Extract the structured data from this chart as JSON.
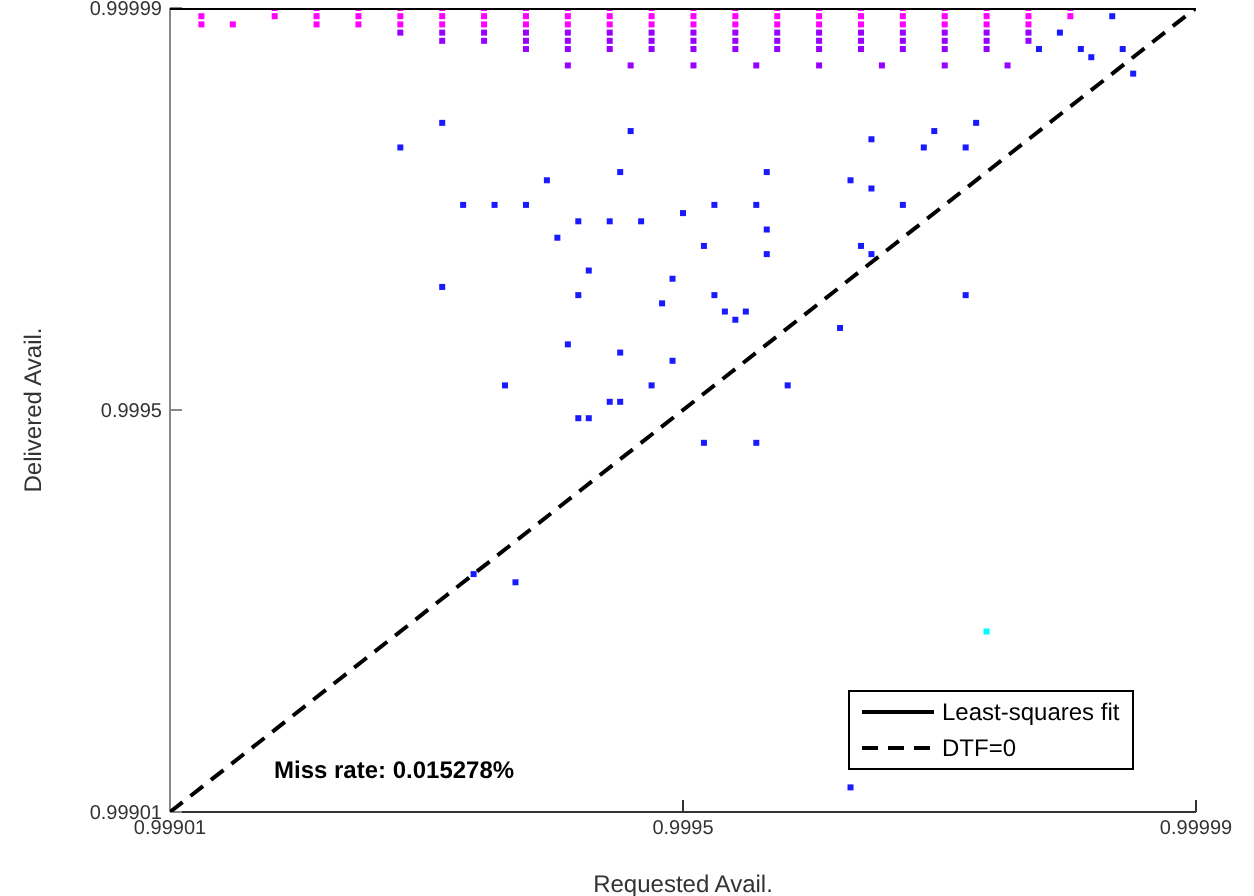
{
  "chart_data": {
    "type": "scatter",
    "xlabel": "Requested Avail.",
    "ylabel": "Delivered Avail.",
    "xlim": [
      0.99901,
      0.99999
    ],
    "ylim": [
      0.99901,
      0.99999
    ],
    "xticks": [
      0.99901,
      0.9995,
      0.99999
    ],
    "yticks": [
      0.99901,
      0.9995,
      0.99999
    ],
    "grid": false,
    "marker": "square",
    "legend": "bottom right",
    "annotations": [
      "Miss rate: 0.015278%"
    ],
    "series": [
      {
        "color": "#ff00ff",
        "x": [
          0.99904,
          0.99904,
          0.99907,
          0.99911,
          0.99915,
          0.99919,
          0.99923,
          0.99927,
          0.99931,
          0.99935,
          0.99939,
          0.99943,
          0.99947,
          0.99951,
          0.99955,
          0.99959,
          0.99963,
          0.99967,
          0.99971,
          0.99975,
          0.99979,
          0.99983,
          0.99987,
          0.99911,
          0.99915,
          0.99919,
          0.99923,
          0.99927,
          0.99931,
          0.99935,
          0.99939,
          0.99943,
          0.99947,
          0.99951,
          0.99955,
          0.99959,
          0.99963,
          0.99967,
          0.99971,
          0.99975,
          0.99979,
          0.99983,
          0.99987,
          0.99915,
          0.99919,
          0.99923,
          0.99927,
          0.99931,
          0.99935,
          0.99939,
          0.99943,
          0.99947,
          0.99951,
          0.99955,
          0.99959,
          0.99963,
          0.99967,
          0.99971,
          0.99975,
          0.99979,
          0.99983
        ],
        "values": [
          0.99998,
          0.99997,
          0.99997,
          0.99999,
          0.99999,
          0.99999,
          0.99999,
          0.99999,
          0.99999,
          0.99999,
          0.99999,
          0.99999,
          0.99999,
          0.99999,
          0.99999,
          0.99999,
          0.99999,
          0.99999,
          0.99999,
          0.99999,
          0.99999,
          0.99999,
          0.99999,
          0.99998,
          0.99998,
          0.99998,
          0.99998,
          0.99998,
          0.99998,
          0.99998,
          0.99998,
          0.99998,
          0.99998,
          0.99998,
          0.99998,
          0.99998,
          0.99998,
          0.99998,
          0.99998,
          0.99998,
          0.99998,
          0.99998,
          0.99998,
          0.99997,
          0.99997,
          0.99997,
          0.99997,
          0.99997,
          0.99997,
          0.99997,
          0.99997,
          0.99997,
          0.99997,
          0.99997,
          0.99997,
          0.99997,
          0.99997,
          0.99997,
          0.99997,
          0.99997,
          0.99997
        ]
      },
      {
        "color": "#9900ff",
        "x": [
          0.99923,
          0.99927,
          0.99931,
          0.99935,
          0.99939,
          0.99943,
          0.99947,
          0.99951,
          0.99955,
          0.99959,
          0.99963,
          0.99967,
          0.99971,
          0.99975,
          0.99979,
          0.99983,
          0.99927,
          0.99931,
          0.99935,
          0.99939,
          0.99943,
          0.99947,
          0.99951,
          0.99955,
          0.99959,
          0.99963,
          0.99967,
          0.99971,
          0.99975,
          0.99979,
          0.99983,
          0.99935,
          0.99939,
          0.99943,
          0.99947,
          0.99951,
          0.99955,
          0.99959,
          0.99963,
          0.99967,
          0.99971,
          0.99975,
          0.99979,
          0.99939,
          0.99945,
          0.99951,
          0.99957,
          0.99963,
          0.99969,
          0.99975,
          0.99981
        ],
        "values": [
          0.99996,
          0.99996,
          0.99996,
          0.99996,
          0.99996,
          0.99996,
          0.99996,
          0.99996,
          0.99996,
          0.99996,
          0.99996,
          0.99996,
          0.99996,
          0.99996,
          0.99996,
          0.99996,
          0.99995,
          0.99995,
          0.99995,
          0.99995,
          0.99995,
          0.99995,
          0.99995,
          0.99995,
          0.99995,
          0.99995,
          0.99995,
          0.99995,
          0.99995,
          0.99995,
          0.99995,
          0.99994,
          0.99994,
          0.99994,
          0.99994,
          0.99994,
          0.99994,
          0.99994,
          0.99994,
          0.99994,
          0.99994,
          0.99994,
          0.99994,
          0.99992,
          0.99992,
          0.99992,
          0.99992,
          0.99992,
          0.99992,
          0.99992,
          0.99992
        ]
      },
      {
        "color": "#1a1aff",
        "x": [
          0.99923,
          0.99927,
          0.99929,
          0.99932,
          0.99935,
          0.99927,
          0.99933,
          0.99939,
          0.99938,
          0.99941,
          0.9994,
          0.99944,
          0.99944,
          0.99948,
          0.99949,
          0.99947,
          0.99941,
          0.99946,
          0.99949,
          0.9995,
          0.9994,
          0.99943,
          0.99937,
          0.99944,
          0.99945,
          0.99953,
          0.99954,
          0.99955,
          0.99956,
          0.99965,
          0.9996,
          0.99977,
          0.99971,
          0.99967,
          0.99968,
          0.99958,
          0.99952,
          0.99958,
          0.99957,
          0.99953,
          0.99968,
          0.99966,
          0.99958,
          0.99977,
          0.99973,
          0.99968,
          0.99974,
          0.99978,
          0.99993,
          0.99992,
          0.99988,
          0.99989,
          0.99991,
          0.99986,
          0.99984,
          0.9993,
          0.99934,
          0.9994,
          0.99943,
          0.99952,
          0.99957,
          0.99966
        ],
        "values": [
          0.99982,
          0.99985,
          0.99975,
          0.99975,
          0.99975,
          0.99965,
          0.99953,
          0.99958,
          0.99971,
          0.99967,
          0.99964,
          0.99957,
          0.99951,
          0.99963,
          0.99956,
          0.99953,
          0.99949,
          0.99973,
          0.99966,
          0.99974,
          0.99973,
          0.99973,
          0.99978,
          0.99979,
          0.99984,
          0.99964,
          0.99962,
          0.99961,
          0.99962,
          0.9996,
          0.99953,
          0.99964,
          0.99975,
          0.9997,
          0.99969,
          0.99969,
          0.9997,
          0.99972,
          0.99975,
          0.99975,
          0.99977,
          0.99978,
          0.99979,
          0.99982,
          0.99982,
          0.99983,
          0.99984,
          0.99985,
          0.99991,
          0.99994,
          0.99994,
          0.99993,
          0.99998,
          0.99996,
          0.99994,
          0.9993,
          0.99929,
          0.99949,
          0.99951,
          0.99946,
          0.99946,
          0.99904
        ]
      },
      {
        "color": "#00ffff",
        "x": [
          0.99979
        ],
        "values": [
          0.99923
        ]
      },
      {
        "type": "line",
        "name": "Least-squares fit",
        "color": "#000000",
        "line_style": "solid",
        "marker": "none",
        "x": [
          0.99901,
          0.99999
        ],
        "values": [
          0.99999,
          0.99999
        ]
      },
      {
        "type": "line",
        "name": "DTF=0",
        "color": "#000000",
        "line_style": "dashed",
        "marker": "none",
        "x": [
          0.99901,
          0.99999
        ],
        "values": [
          0.99901,
          0.99999
        ]
      }
    ]
  }
}
